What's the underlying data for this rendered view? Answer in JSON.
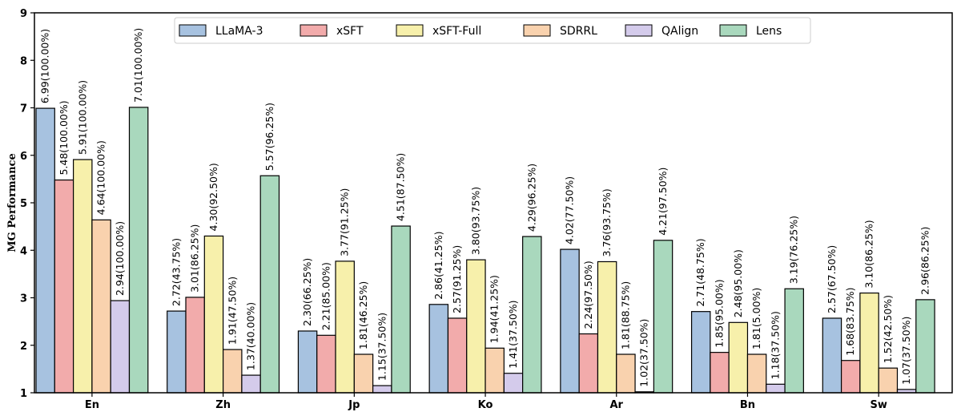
{
  "chart_data": {
    "type": "bar",
    "title": "",
    "xlabel": "",
    "ylabel": "MG Performance",
    "ylim": [
      1,
      9
    ],
    "yticks": [
      1,
      2,
      3,
      4,
      5,
      6,
      7,
      8,
      9
    ],
    "grid": false,
    "legend_position": "top-center",
    "categories": [
      "En",
      "Zh",
      "Jp",
      "Ko",
      "Ar",
      "Bn",
      "Sw"
    ],
    "series": [
      {
        "name": "LLaMA-3",
        "color": "#a7c2e0",
        "values": [
          6.99,
          2.72,
          2.3,
          2.86,
          4.02,
          2.71,
          2.57
        ],
        "labels": [
          "6.99(100.00%)",
          "2.72(43.75%)",
          "2.30(66.25%)",
          "2.86(41.25%)",
          "4.02(77.50%)",
          "2.71(48.75%)",
          "2.57(67.50%)"
        ]
      },
      {
        "name": "xSFT",
        "color": "#f2abab",
        "values": [
          5.48,
          3.01,
          2.21,
          2.57,
          2.24,
          1.85,
          1.68
        ],
        "labels": [
          "5.48(100.00%)",
          "3.01(86.25%)",
          "2.21(85.00%)",
          "2.57(91.25%)",
          "2.24(97.50%)",
          "1.85(95.00%)",
          "1.68(83.75%)"
        ]
      },
      {
        "name": "xSFT-Full",
        "color": "#f7f0ab",
        "values": [
          5.91,
          4.3,
          3.77,
          3.8,
          3.76,
          2.48,
          3.1
        ],
        "labels": [
          "5.91(100.00%)",
          "4.30(92.50%)",
          "3.77(91.25%)",
          "3.80(93.75%)",
          "3.76(93.75%)",
          "2.48(95.00%)",
          "3.10(86.25%)"
        ]
      },
      {
        "name": "SDRRL",
        "color": "#f9d2ae",
        "values": [
          4.64,
          1.91,
          1.81,
          1.94,
          1.81,
          1.81,
          1.52
        ],
        "labels": [
          "4.64(100.00%)",
          "1.91(47.50%)",
          "1.81(46.25%)",
          "1.94(41.25%)",
          "1.81(88.75%)",
          "1.81(5.00%)",
          "1.52(42.50%)"
        ]
      },
      {
        "name": "QAlign",
        "color": "#d4cbeb",
        "values": [
          2.94,
          1.37,
          1.15,
          1.41,
          1.02,
          1.18,
          1.07
        ],
        "labels": [
          "2.94(100.00%)",
          "1.37(40.00%)",
          "1.15(37.50%)",
          "1.41(37.50%)",
          "1.02(37.50%)",
          "1.18(37.50%)",
          "1.07(37.50%)"
        ]
      },
      {
        "name": "Lens",
        "color": "#a9d8bd",
        "values": [
          7.01,
          5.57,
          4.51,
          4.29,
          4.21,
          3.19,
          2.96
        ],
        "labels": [
          "7.01(100.00%)",
          "5.57(96.25%)",
          "4.51(87.50%)",
          "4.29(96.25%)",
          "4.21(97.50%)",
          "3.19(76.25%)",
          "2.96(86.25%)"
        ]
      }
    ]
  }
}
